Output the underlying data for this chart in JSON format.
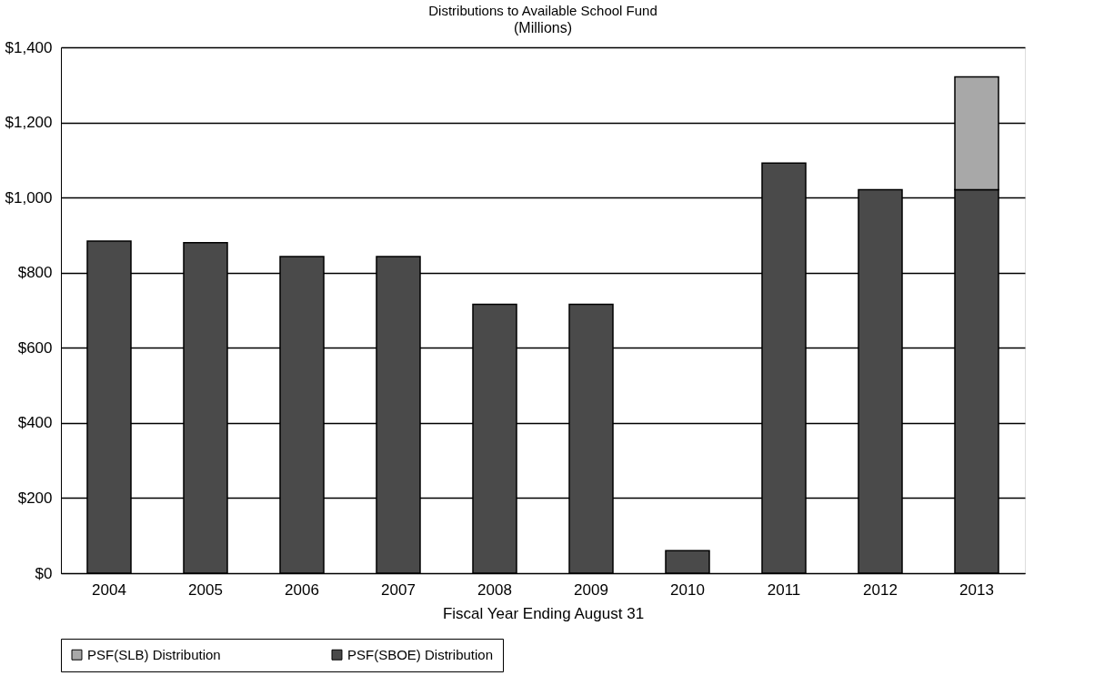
{
  "chart_data": {
    "type": "bar",
    "title": "Distributions to Available School Fund",
    "ylabel": "(Millions)",
    "xlabel": "Fiscal Year Ending August 31",
    "categories": [
      "2004",
      "2005",
      "2006",
      "2007",
      "2008",
      "2009",
      "2010",
      "2011",
      "2012",
      "2013"
    ],
    "stacked": true,
    "series": [
      {
        "name": "PSF(SBOE) Distribution",
        "color": "#4a4a4a",
        "values": [
          884,
          880,
          843,
          843,
          716,
          716,
          60,
          1092,
          1021,
          1021
        ]
      },
      {
        "name": "PSF(SLB) Distribution",
        "color": "#a8a8a8",
        "values": [
          null,
          null,
          null,
          null,
          null,
          null,
          null,
          null,
          null,
          300
        ]
      }
    ],
    "ylim": [
      0,
      1400
    ],
    "yticks": [
      {
        "value": 0,
        "label": "$0"
      },
      {
        "value": 200,
        "label": "$200"
      },
      {
        "value": 400,
        "label": "$400"
      },
      {
        "value": 600,
        "label": "$600"
      },
      {
        "value": 800,
        "label": "$800"
      },
      {
        "value": 1000,
        "label": "$1,000"
      },
      {
        "value": 1200,
        "label": "$1,200"
      },
      {
        "value": 1400,
        "label": "$1,400"
      }
    ],
    "grid": "y",
    "legend": "bottom"
  }
}
